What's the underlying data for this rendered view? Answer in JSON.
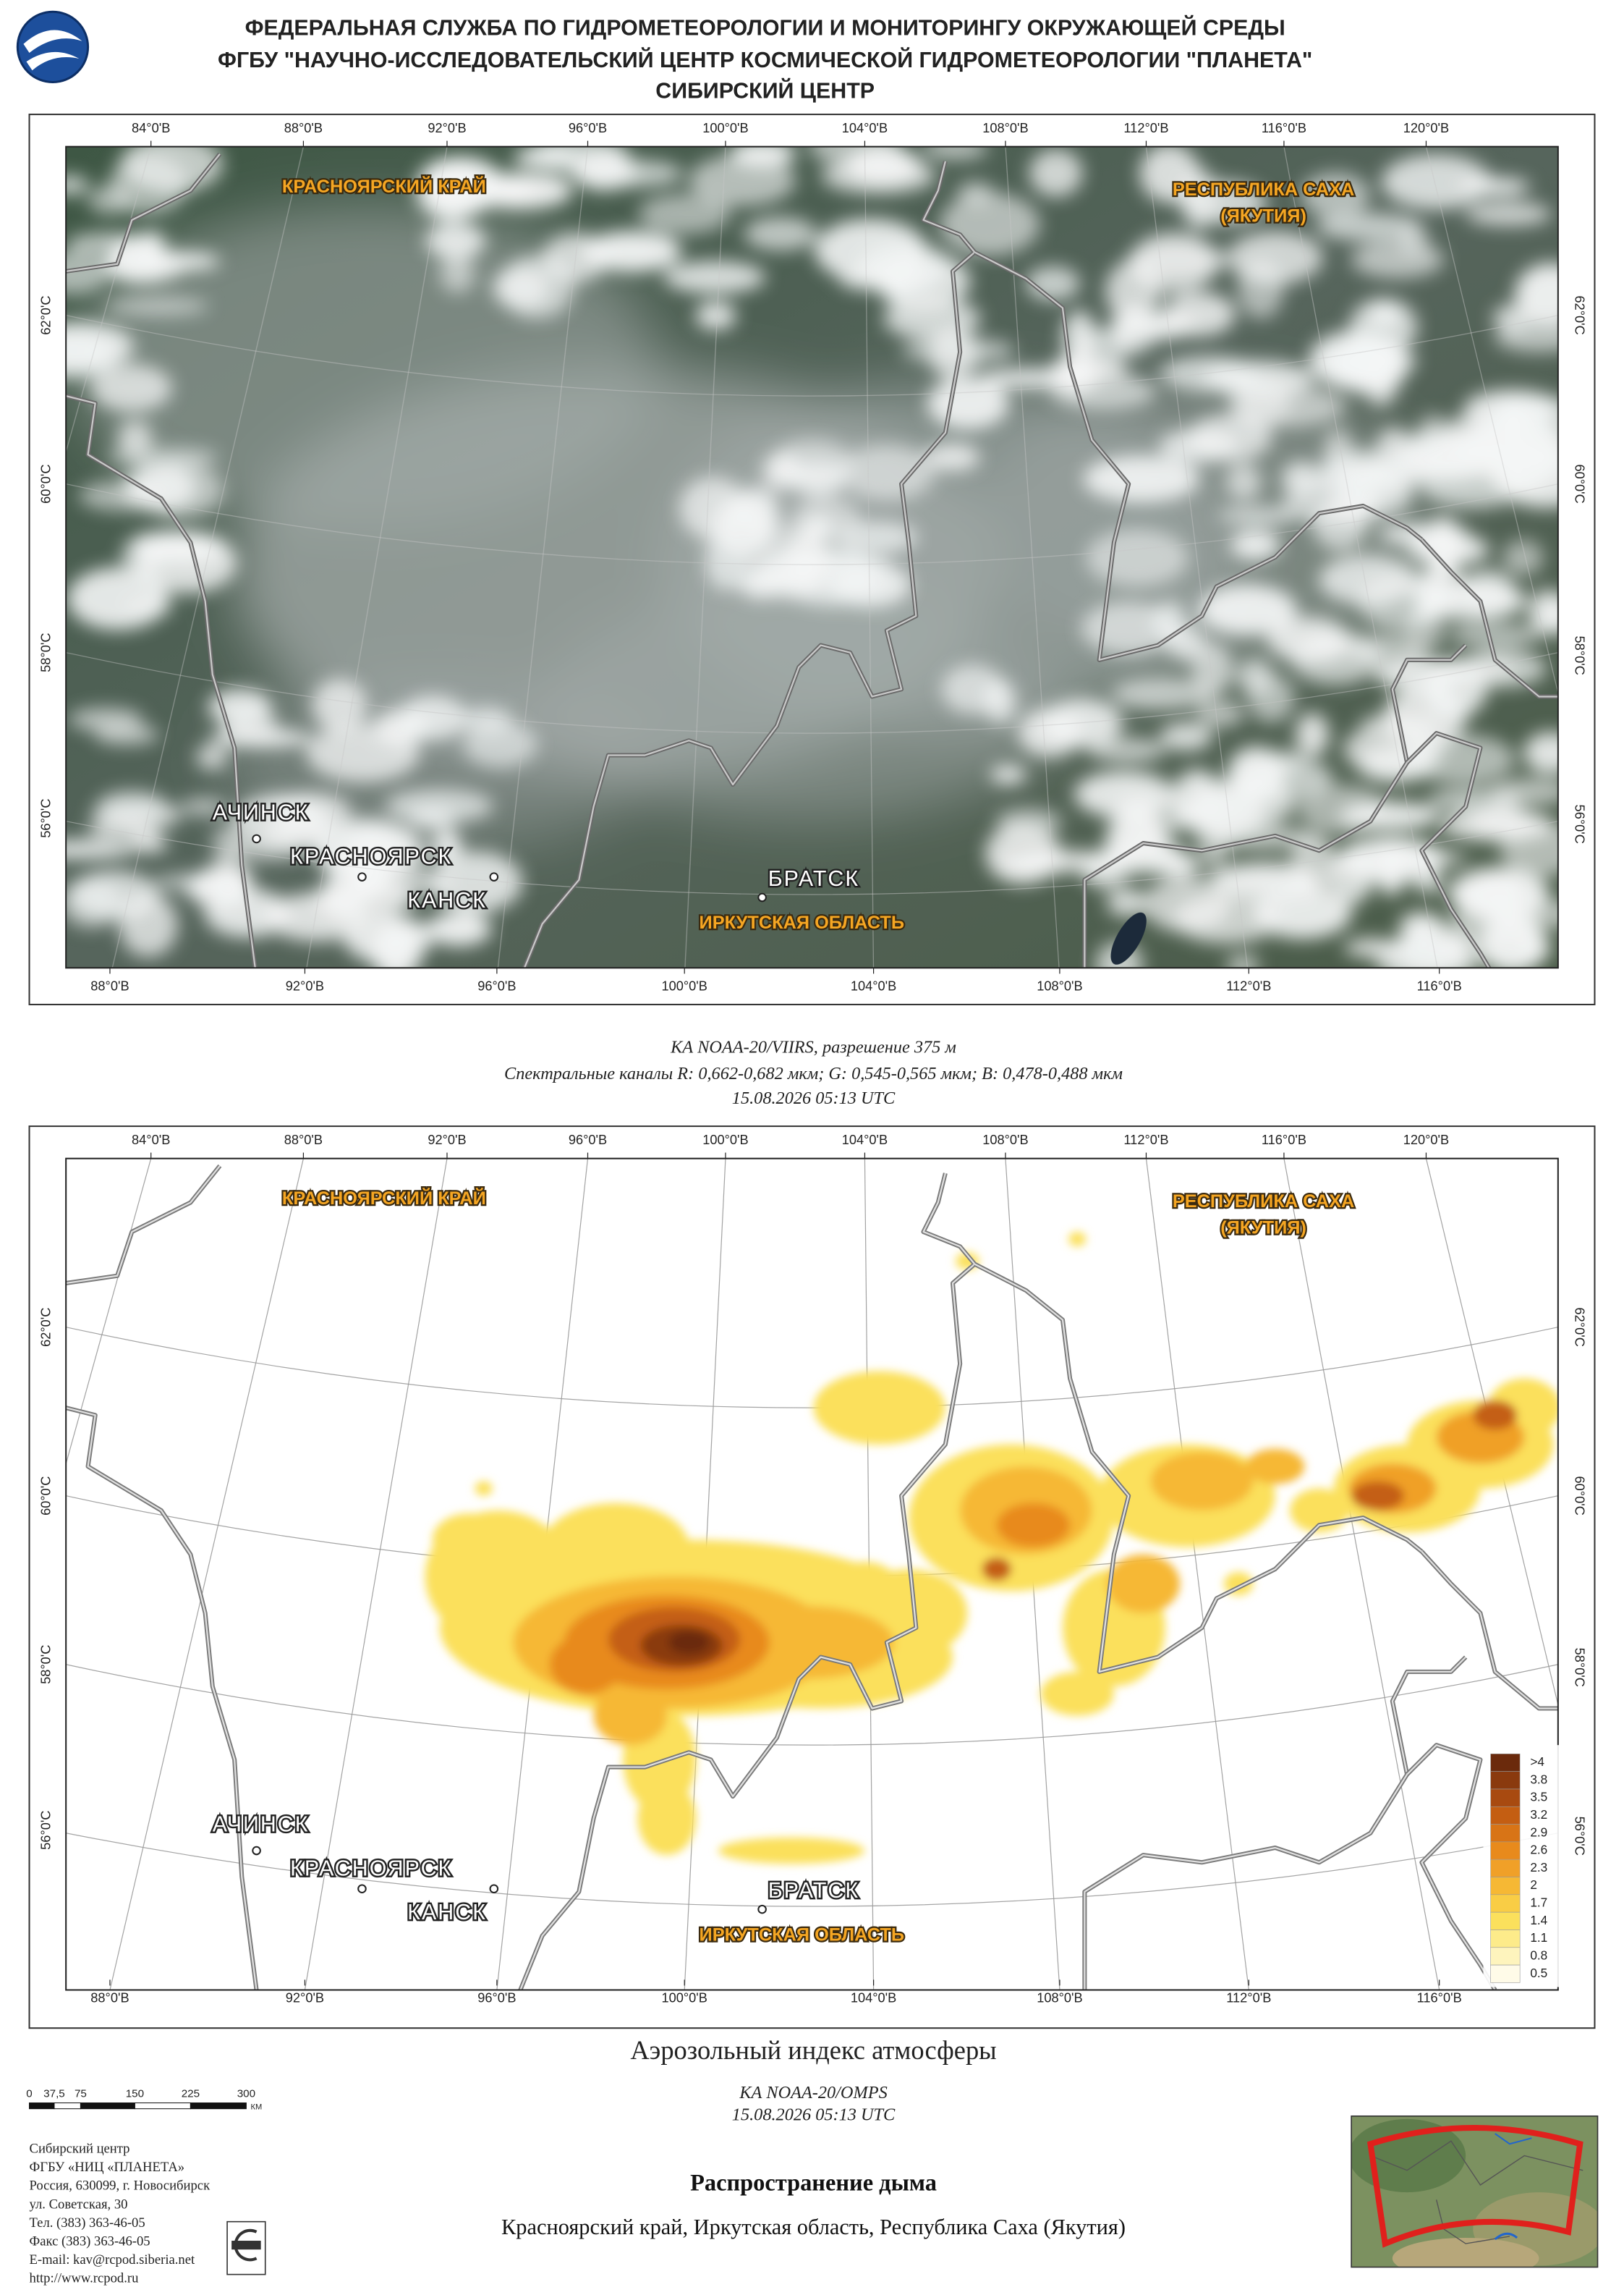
{
  "header": {
    "lines": [
      "ФЕДЕРАЛЬНАЯ СЛУЖБА ПО ГИДРОМЕТЕОРОЛОГИИ И МОНИТОРИНГУ ОКРУЖАЮЩЕЙ СРЕДЫ",
      "ФГБУ \"НАУЧНО-ИССЛЕДОВАТЕЛЬСКИЙ ЦЕНТР КОСМИЧЕСКОЙ ГИДРОМЕТЕОРОЛОГИИ \"ПЛАНЕТА\"",
      "СИБИРСКИЙ ЦЕНТР"
    ]
  },
  "map_grid": {
    "top": [
      "84°0'В",
      "88°0'В",
      "92°0'В",
      "96°0'В",
      "100°0'В",
      "104°0'В",
      "108°0'В",
      "112°0'В",
      "116°0'В",
      "120°0'В"
    ],
    "bottom": [
      "88°0'В",
      "92°0'В",
      "96°0'В",
      "100°0'В",
      "104°0'В",
      "108°0'В",
      "112°0'В",
      "116°0'В"
    ],
    "left": [
      "62°0'С",
      "60°0'С",
      "58°0'С",
      "56°0'С"
    ],
    "right": [
      "62°0'С",
      "60°0'С",
      "58°0'С",
      "56°0'С"
    ]
  },
  "places": {
    "regions": [
      "КРАСНОЯРСКИЙ КРАЙ",
      "РЕСПУБЛИКА САХА",
      "(ЯКУТИЯ)",
      "ИРКУТСКАЯ ОБЛАСТЬ"
    ],
    "cities": [
      "АЧИНСК",
      "КРАСНОЯРСК",
      "КАНСК",
      "БРАТСК"
    ]
  },
  "satellite_caption": {
    "lines": [
      "КА NOAA-20/VIIRS, разрешение 375 м",
      "Спектральные каналы R: 0,662-0,682 мкм; G: 0,545-0,565 мкм; B: 0,478-0,488 мкм",
      "15.08.2026  05:13 UTC"
    ]
  },
  "aerosol": {
    "title": "Аэрозольный индекс атмосферы",
    "legend": [
      {
        "label": ">4",
        "color": "#6b2a0c"
      },
      {
        "label": "3.8",
        "color": "#8a3a0e"
      },
      {
        "label": "3.5",
        "color": "#a84a10"
      },
      {
        "label": "3.2",
        "color": "#c45e12"
      },
      {
        "label": "2.9",
        "color": "#d87416"
      },
      {
        "label": "2.6",
        "color": "#e88a1c"
      },
      {
        "label": "2.3",
        "color": "#f0a028"
      },
      {
        "label": "2",
        "color": "#f6b834"
      },
      {
        "label": "1.7",
        "color": "#f9cd45"
      },
      {
        "label": "1.4",
        "color": "#fbe05c"
      },
      {
        "label": "1.1",
        "color": "#fdeb8a"
      },
      {
        "label": "0.8",
        "color": "#fef4bd"
      },
      {
        "label": "0.5",
        "color": "#fffbe8"
      }
    ],
    "caption": [
      "КА NOAA-20/OMPS",
      "15.08.2026  05:13 UTC"
    ]
  },
  "scale_bar": {
    "labels": [
      "0",
      "37,5",
      "75",
      "150",
      "225",
      "300"
    ],
    "unit": "КМ"
  },
  "organization": {
    "lines": [
      "Сибирский центр",
      "ФГБУ «НИЦ «ПЛАНЕТА»",
      "Россия, 630099, г. Новосибирск",
      "ул. Советская, 30",
      "Тел. (383) 363-46-05",
      "Факс (383) 363-46-05",
      "E-mail: kav@rcpod.siberia.net",
      "http://www.rcpod.ru"
    ]
  },
  "footer": {
    "title": "Распространение дыма",
    "regions": "Красноярский край, Иркутская область, Республика Саха (Якутия)"
  }
}
